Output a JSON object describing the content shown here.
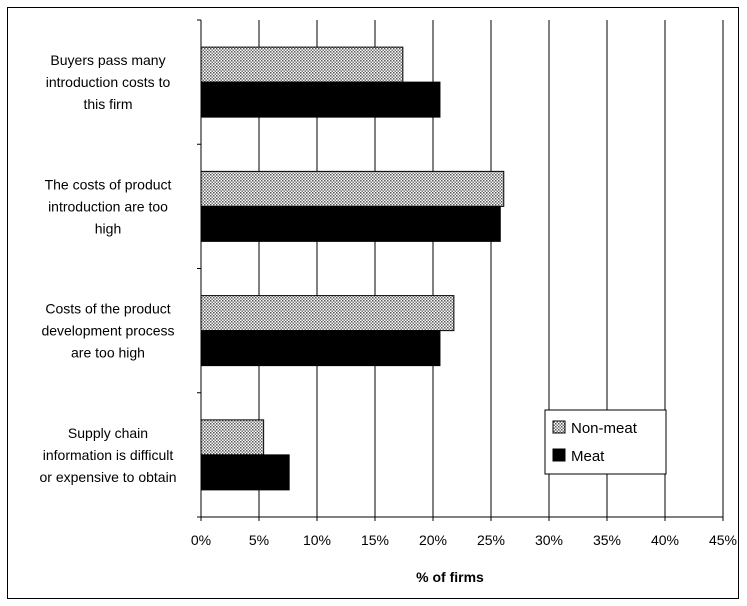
{
  "chart_data": {
    "type": "bar",
    "orientation": "horizontal",
    "categories": [
      [
        "Buyers pass many",
        "introduction costs to",
        "this firm"
      ],
      [
        "The costs of product",
        "introduction are too",
        "high"
      ],
      [
        "Costs of the product",
        "development process",
        "are too high"
      ],
      [
        "Supply chain",
        "information is difficult",
        "or expensive to obtain"
      ]
    ],
    "series": [
      {
        "name": "Non-meat",
        "values": [
          17.4,
          26.1,
          21.8,
          5.4
        ],
        "color": "#c8c8c8",
        "pattern": "dotted"
      },
      {
        "name": "Meat",
        "values": [
          20.6,
          25.8,
          20.6,
          7.6
        ],
        "color": "#000000"
      }
    ],
    "xlabel": "% of firms",
    "xlim": [
      0,
      45
    ],
    "xticks": [
      0,
      5,
      10,
      15,
      20,
      25,
      30,
      35,
      40,
      45
    ],
    "xtick_labels": [
      "0%",
      "5%",
      "10%",
      "15%",
      "20%",
      "25%",
      "30%",
      "35%",
      "40%",
      "45%"
    ],
    "grid": "vertical",
    "legend_position": "bottom-right"
  }
}
